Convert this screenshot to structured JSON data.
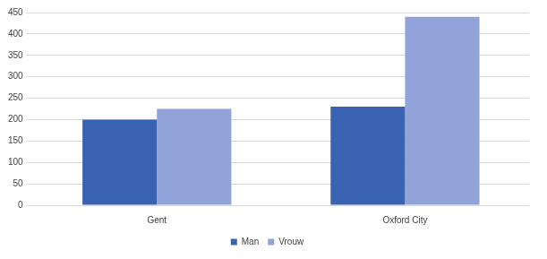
{
  "chart_data": {
    "type": "bar",
    "categories": [
      "Gent",
      "Oxford City"
    ],
    "series": [
      {
        "name": "Man",
        "color": "#3a62b2",
        "values": [
          200,
          230
        ]
      },
      {
        "name": "Vrouw",
        "color": "#91a3d9",
        "values": [
          225,
          440
        ]
      }
    ],
    "ylim": [
      0,
      450
    ],
    "yticks": [
      0,
      50,
      100,
      150,
      200,
      250,
      300,
      350,
      400,
      450
    ],
    "grid": true,
    "legend": "bottom"
  }
}
